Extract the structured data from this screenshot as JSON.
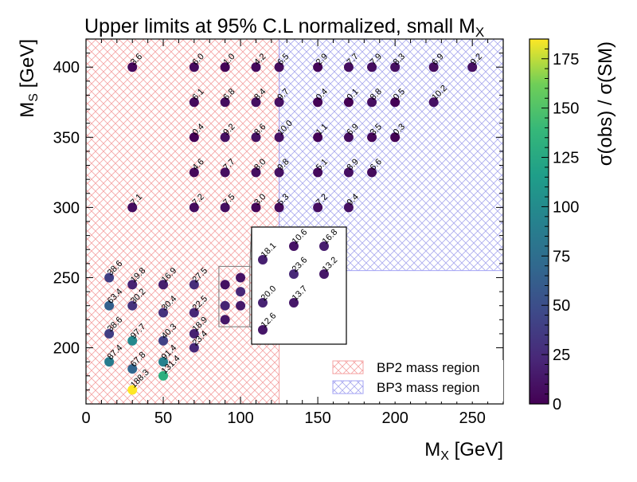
{
  "chart_data": {
    "type": "scatter",
    "title": "Upper limits at 95% C.L normalized, small M",
    "title_sub": "X",
    "xlabel": "M",
    "xlabel_sub": "X",
    "xlabel_unit": " [GeV]",
    "ylabel": "M",
    "ylabel_sub": "S",
    "ylabel_unit": " [GeV]",
    "colorbar_label": "σ(obs) / σ(SM)",
    "colormap": "viridis",
    "color_range": [
      0,
      185
    ],
    "xlim": [
      0,
      270
    ],
    "ylim": [
      160,
      420
    ],
    "x_ticks": [
      0,
      50,
      100,
      150,
      200,
      250
    ],
    "y_ticks": [
      200,
      250,
      300,
      350,
      400
    ],
    "colorbar_ticks": [
      0,
      25,
      50,
      75,
      100,
      125,
      150,
      175
    ],
    "regions": [
      {
        "name": "BP2 mass region",
        "x": [
          0,
          125
        ],
        "y": [
          160,
          420
        ],
        "color": "#f4a3a3"
      },
      {
        "name": "BP3 mass region",
        "x": [
          125,
          270
        ],
        "y": [
          255,
          420
        ],
        "color": "#a3a3f4"
      }
    ],
    "legend_position": "lower-right",
    "points": [
      {
        "x": 30,
        "y": 400,
        "label": "3.6",
        "v": 3.6
      },
      {
        "x": 70,
        "y": 400,
        "label": "6.0",
        "v": 6.0
      },
      {
        "x": 90,
        "y": 400,
        "label": "1.0",
        "v": 1.0
      },
      {
        "x": 110,
        "y": 400,
        "label": "4.2",
        "v": 4.2
      },
      {
        "x": 125,
        "y": 400,
        "label": "6.5",
        "v": 6.5
      },
      {
        "x": 150,
        "y": 400,
        "label": "2.9",
        "v": 2.9
      },
      {
        "x": 170,
        "y": 400,
        "label": "7.7",
        "v": 7.7
      },
      {
        "x": 185,
        "y": 400,
        "label": "7.9",
        "v": 7.9
      },
      {
        "x": 200,
        "y": 400,
        "label": "8.3",
        "v": 8.3
      },
      {
        "x": 225,
        "y": 400,
        "label": "6.9",
        "v": 6.9
      },
      {
        "x": 250,
        "y": 400,
        "label": "9.2",
        "v": 9.2
      },
      {
        "x": 70,
        "y": 375,
        "label": "6.1",
        "v": 6.1
      },
      {
        "x": 90,
        "y": 375,
        "label": "6.8",
        "v": 6.8
      },
      {
        "x": 110,
        "y": 375,
        "label": "8.4",
        "v": 8.4
      },
      {
        "x": 125,
        "y": 375,
        "label": "9.7",
        "v": 9.7
      },
      {
        "x": 150,
        "y": 375,
        "label": "0.4",
        "v": 0.4
      },
      {
        "x": 170,
        "y": 375,
        "label": "0.1",
        "v": 0.1
      },
      {
        "x": 185,
        "y": 375,
        "label": "8.8",
        "v": 8.8
      },
      {
        "x": 200,
        "y": 375,
        "label": "0.5",
        "v": 0.5
      },
      {
        "x": 225,
        "y": 375,
        "label": "10.2",
        "v": 10.2
      },
      {
        "x": 70,
        "y": 350,
        "label": "0.4",
        "v": 0.4
      },
      {
        "x": 90,
        "y": 350,
        "label": "9.2",
        "v": 9.2
      },
      {
        "x": 110,
        "y": 350,
        "label": "8.6",
        "v": 8.6
      },
      {
        "x": 125,
        "y": 350,
        "label": "10.0",
        "v": 10.0
      },
      {
        "x": 150,
        "y": 350,
        "label": "1.1",
        "v": 1.1
      },
      {
        "x": 170,
        "y": 350,
        "label": "6.9",
        "v": 6.9
      },
      {
        "x": 185,
        "y": 350,
        "label": "3.5",
        "v": 3.5
      },
      {
        "x": 200,
        "y": 350,
        "label": "0.3",
        "v": 0.3
      },
      {
        "x": 70,
        "y": 325,
        "label": "4.6",
        "v": 4.6
      },
      {
        "x": 90,
        "y": 325,
        "label": "7.7",
        "v": 7.7
      },
      {
        "x": 110,
        "y": 325,
        "label": "8.0",
        "v": 8.0
      },
      {
        "x": 125,
        "y": 325,
        "label": "9.8",
        "v": 9.8
      },
      {
        "x": 150,
        "y": 325,
        "label": "5.1",
        "v": 5.1
      },
      {
        "x": 170,
        "y": 325,
        "label": "8.9",
        "v": 8.9
      },
      {
        "x": 185,
        "y": 325,
        "label": "6.6",
        "v": 6.6
      },
      {
        "x": 30,
        "y": 300,
        "label": "7.1",
        "v": 7.1
      },
      {
        "x": 70,
        "y": 300,
        "label": "7.2",
        "v": 7.2
      },
      {
        "x": 90,
        "y": 300,
        "label": "7.5",
        "v": 7.5
      },
      {
        "x": 110,
        "y": 300,
        "label": "3.0",
        "v": 3.0
      },
      {
        "x": 125,
        "y": 300,
        "label": "5.3",
        "v": 5.3
      },
      {
        "x": 150,
        "y": 300,
        "label": "7.2",
        "v": 7.2
      },
      {
        "x": 170,
        "y": 300,
        "label": "9.4",
        "v": 9.4
      },
      {
        "x": 15,
        "y": 250,
        "label": "38.6",
        "v": 38.6
      },
      {
        "x": 30,
        "y": 245,
        "label": "19.8",
        "v": 19.8
      },
      {
        "x": 50,
        "y": 245,
        "label": "16.9",
        "v": 16.9
      },
      {
        "x": 70,
        "y": 245,
        "label": "27.5",
        "v": 27.5
      },
      {
        "x": 15,
        "y": 230,
        "label": "63.4",
        "v": 63.4
      },
      {
        "x": 30,
        "y": 230,
        "label": "30.2",
        "v": 30.2
      },
      {
        "x": 50,
        "y": 225,
        "label": "30.4",
        "v": 30.4
      },
      {
        "x": 70,
        "y": 225,
        "label": "22.5",
        "v": 22.5
      },
      {
        "x": 15,
        "y": 210,
        "label": "38.6",
        "v": 38.6
      },
      {
        "x": 30,
        "y": 205,
        "label": "97.7",
        "v": 97.7
      },
      {
        "x": 50,
        "y": 205,
        "label": "40.3",
        "v": 40.3
      },
      {
        "x": 70,
        "y": 210,
        "label": "18.9",
        "v": 18.9
      },
      {
        "x": 70,
        "y": 200,
        "label": "23.4",
        "v": 23.4
      },
      {
        "x": 15,
        "y": 190,
        "label": "87.4",
        "v": 87.4
      },
      {
        "x": 30,
        "y": 185,
        "label": "67.8",
        "v": 67.8
      },
      {
        "x": 50,
        "y": 190,
        "label": "91.4",
        "v": 91.4
      },
      {
        "x": 50,
        "y": 180,
        "label": "131.4",
        "v": 131.4
      },
      {
        "x": 30,
        "y": 170,
        "label": "188.3",
        "v": 188.3
      },
      {
        "x": 90,
        "y": 245,
        "label": "",
        "v": 8.1
      },
      {
        "x": 100,
        "y": 250,
        "label": "",
        "v": 10.6
      },
      {
        "x": 100,
        "y": 240,
        "label": "",
        "v": 23.6
      },
      {
        "x": 90,
        "y": 230,
        "label": "",
        "v": 20.0
      },
      {
        "x": 100,
        "y": 230,
        "label": "",
        "v": 13.7
      },
      {
        "x": 90,
        "y": 220,
        "label": "",
        "v": 12.6
      }
    ],
    "inset": {
      "source_x": [
        86,
        106
      ],
      "source_y": [
        215,
        258
      ],
      "points": [
        {
          "label": "18.1",
          "v": 18.1
        },
        {
          "label": "10.6",
          "v": 10.6
        },
        {
          "label": "16.8",
          "v": 16.8
        },
        {
          "label": "20.0",
          "v": 20.0
        },
        {
          "label": "23.6",
          "v": 23.6
        },
        {
          "label": "13.2",
          "v": 13.2
        },
        {
          "label": "12.6",
          "v": 12.6
        },
        {
          "label": "13.7",
          "v": 13.7
        }
      ]
    }
  }
}
